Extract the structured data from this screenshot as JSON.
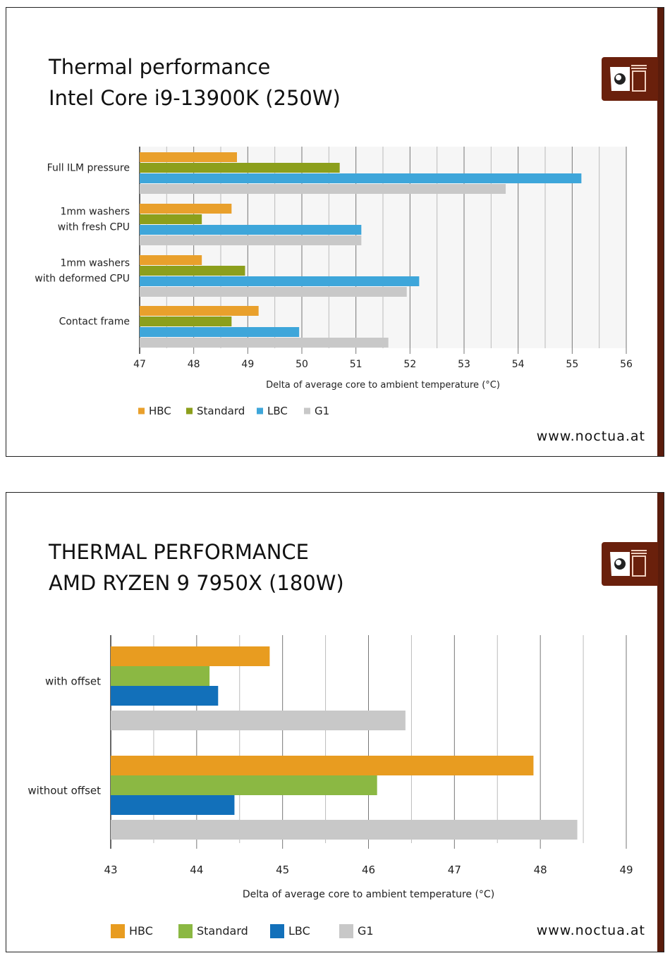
{
  "chart_data": [
    {
      "type": "bar",
      "orientation": "horizontal",
      "title": "Thermal performance",
      "subtitle": "Intel Core i9-13900K (250W)",
      "categories": [
        "Full ILM pressure",
        "1mm washers\nwith fresh CPU",
        "1mm washers\nwith deformed CPU",
        "Contact frame"
      ],
      "series": [
        {
          "name": "HBC",
          "color": "#e9a02c",
          "values": [
            48.8,
            48.7,
            48.15,
            49.2
          ]
        },
        {
          "name": "Standard",
          "color": "#8c9f1c",
          "values": [
            50.7,
            48.15,
            48.95,
            48.7
          ]
        },
        {
          "name": "LBC",
          "color": "#3ea6da",
          "values": [
            55.17,
            51.1,
            52.17,
            49.95
          ]
        },
        {
          "name": "G1",
          "color": "#c8c8c8",
          "values": [
            53.77,
            51.1,
            51.94,
            51.6
          ]
        }
      ],
      "xlabel": "Delta of average core to ambient temperature (°C)",
      "xlim": [
        47,
        56
      ],
      "xticks": [
        "47",
        "48",
        "49",
        "50",
        "51",
        "52",
        "53",
        "54",
        "55",
        "56"
      ],
      "grid": true,
      "legend": "bottom-left"
    },
    {
      "type": "bar",
      "orientation": "horizontal",
      "title": "THERMAL PERFORMANCE",
      "subtitle": "AMD RYZEN 9 7950X (180W)",
      "categories": [
        "with offset",
        "without offset"
      ],
      "series": [
        {
          "name": "HBC",
          "color": "#e89c20",
          "values": [
            44.85,
            47.92
          ]
        },
        {
          "name": "Standard",
          "color": "#8bb843",
          "values": [
            44.15,
            46.1
          ]
        },
        {
          "name": "LBC",
          "color": "#1270ba",
          "values": [
            44.25,
            44.44
          ]
        },
        {
          "name": "G1",
          "color": "#c8c8c8",
          "values": [
            46.43,
            48.43
          ]
        }
      ],
      "xlabel": "Delta of average core to ambient temperature (°C)",
      "xlim": [
        43,
        49
      ],
      "xticks": [
        "43",
        "44",
        "45",
        "46",
        "47",
        "48",
        "49"
      ],
      "grid": true,
      "legend": "bottom-left"
    }
  ],
  "footer": {
    "url": "www.noctua.at"
  },
  "brand": {
    "logo": "noctua owl logo",
    "color": "#6a200c"
  }
}
